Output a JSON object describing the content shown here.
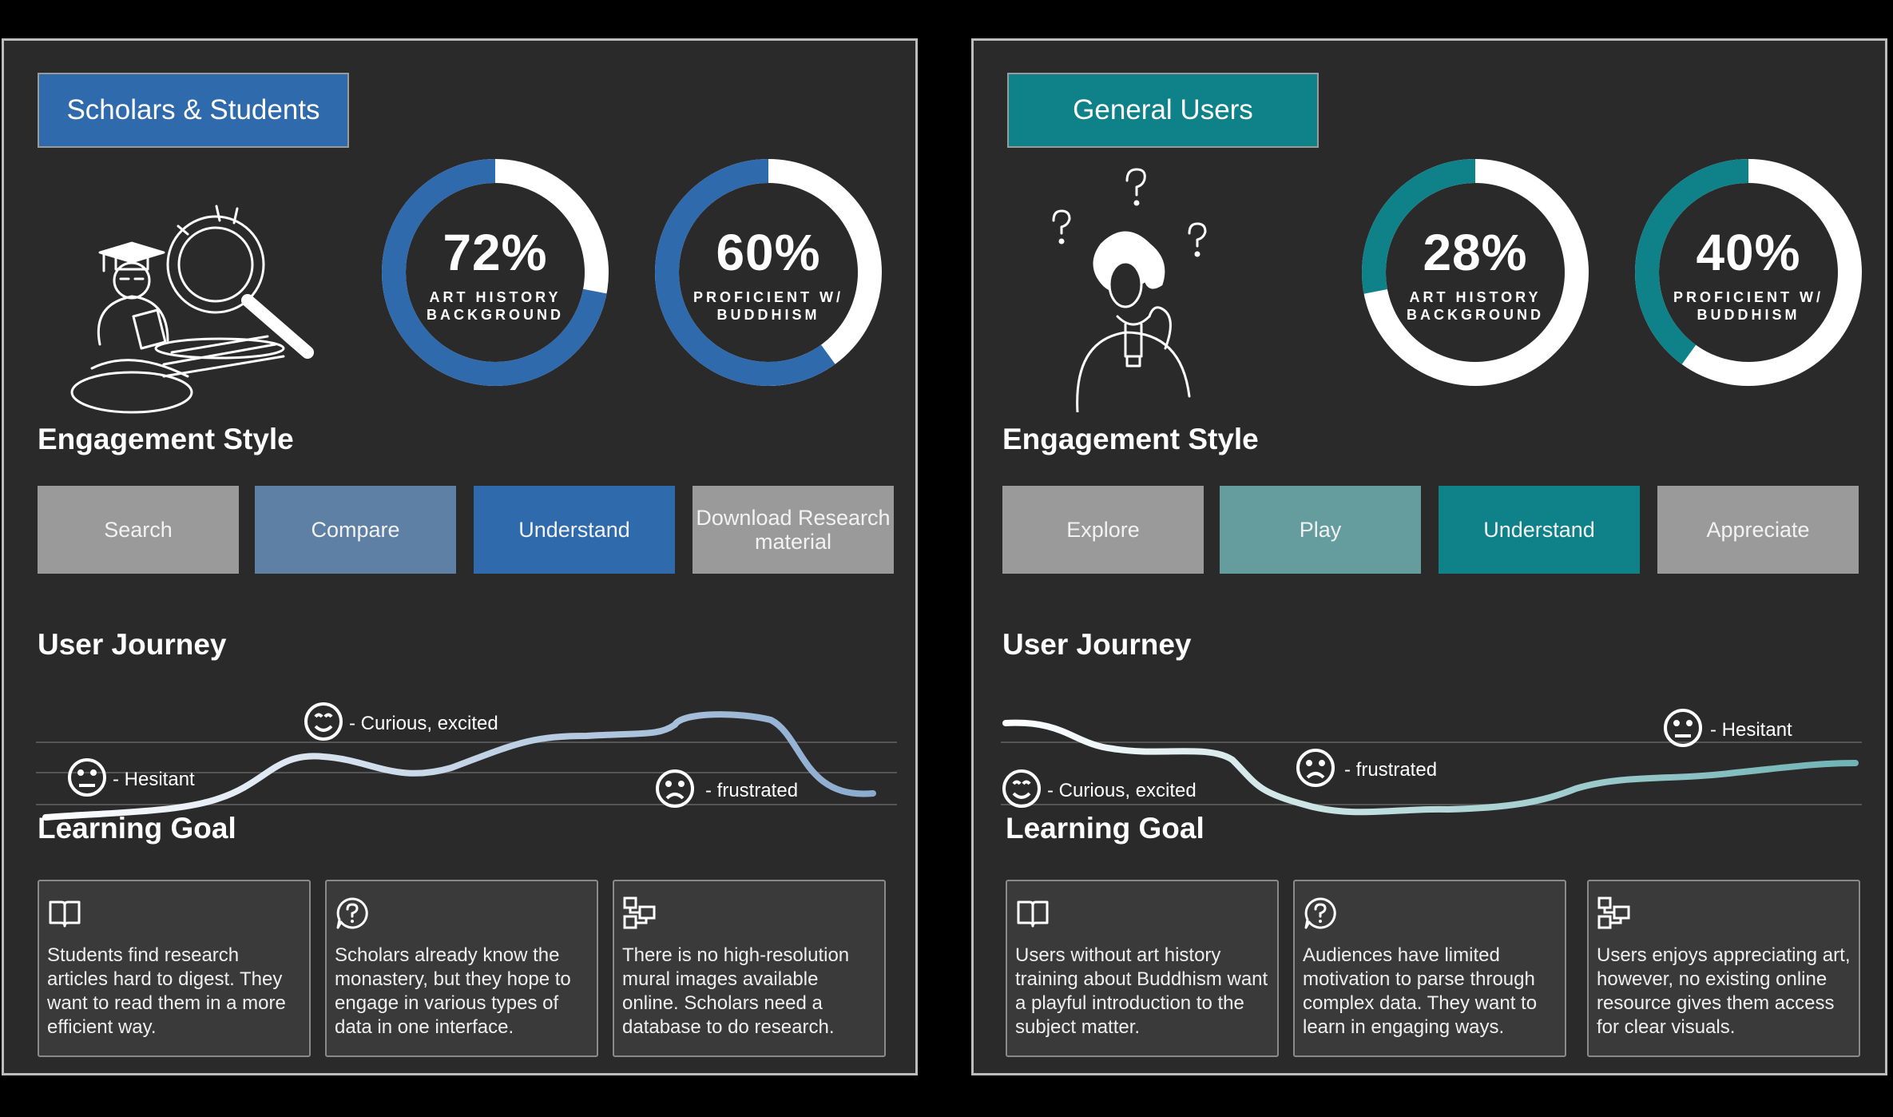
{
  "panels": {
    "left": {
      "title": "Scholars & Students",
      "accent": "#2f6aac",
      "stats": [
        {
          "value": 0.72,
          "pct": "72%",
          "label": "ART HISTORY BACKGROUND"
        },
        {
          "value": 0.6,
          "pct": "60%",
          "label": "PROFICIENT W/ BUDDHISM"
        }
      ],
      "engagement_heading": "Engagement Style",
      "engagement": [
        {
          "label": "Search",
          "color": "#9a9a9a"
        },
        {
          "label": "Compare",
          "color": "#5e80a4"
        },
        {
          "label": "Understand",
          "color": "#2f6aac"
        },
        {
          "label": "Download Research material",
          "color": "#9a9a9a"
        }
      ],
      "journey_heading": "User Journey",
      "journey": [
        {
          "label": "- Hesitant",
          "mood": "neutral-face-icon"
        },
        {
          "label": "- Curious, excited",
          "mood": "smiling-face-icon"
        },
        {
          "label": "- frustrated",
          "mood": "frowning-face-icon"
        }
      ],
      "goal_heading": "Learning Goal",
      "goals": [
        {
          "icon": "book-icon",
          "text": "Students find research articles hard to digest. They want to read them in a more efficient way."
        },
        {
          "icon": "question-bubble-icon",
          "text": "Scholars already know the monastery, but they hope to engage in various types of data in one interface."
        },
        {
          "icon": "image-grid-icon",
          "text": "There is no high-resolution mural images available online. Scholars need a database to do research."
        }
      ]
    },
    "right": {
      "title": "General Users",
      "accent": "#0f8289",
      "stats": [
        {
          "value": 0.28,
          "pct": "28%",
          "label": "ART HISTORY BACKGROUND"
        },
        {
          "value": 0.4,
          "pct": "40%",
          "label": "PROFICIENT W/ BUDDHISM"
        }
      ],
      "engagement_heading": "Engagement Style",
      "engagement": [
        {
          "label": "Explore",
          "color": "#9a9a9a"
        },
        {
          "label": "Play",
          "color": "#659d9f"
        },
        {
          "label": "Understand",
          "color": "#0f8289"
        },
        {
          "label": "Appreciate",
          "color": "#9a9a9a"
        }
      ],
      "journey_heading": "User Journey",
      "journey": [
        {
          "label": "- Curious, excited",
          "mood": "smiling-face-icon"
        },
        {
          "label": "- frustrated",
          "mood": "frowning-face-icon"
        },
        {
          "label": "- Hesitant",
          "mood": "neutral-face-icon"
        }
      ],
      "goal_heading": "Learning Goal",
      "goals": [
        {
          "icon": "book-icon",
          "text": "Users without art history training about Buddhism want a playful introduction to the subject matter."
        },
        {
          "icon": "question-bubble-icon",
          "text": "Audiences have limited motivation to parse through complex data. They want to learn in engaging ways."
        },
        {
          "icon": "image-grid-icon",
          "text": "Users enjoys appreciating art, however, no existing online resource gives them access for clear visuals."
        }
      ]
    }
  }
}
